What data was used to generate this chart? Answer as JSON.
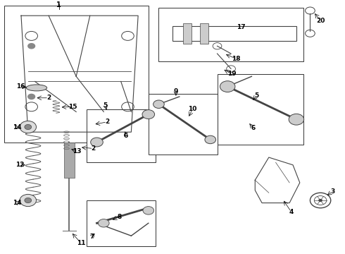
{
  "title": "",
  "background_color": "#ffffff",
  "fig_width": 4.9,
  "fig_height": 3.6,
  "dpi": 100
}
